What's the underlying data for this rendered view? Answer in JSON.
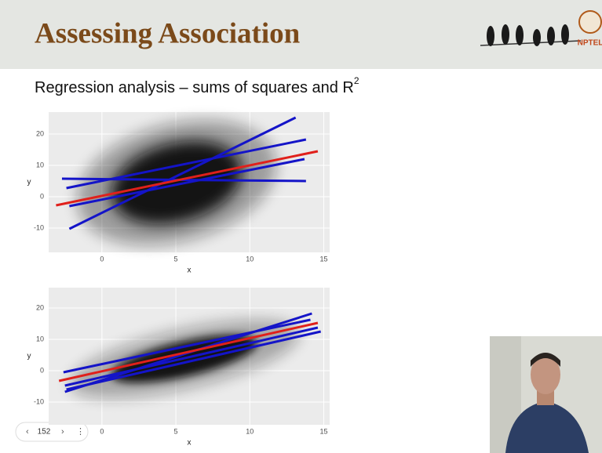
{
  "header": {
    "title": "Assessing Association",
    "logo_text": "NPTEL"
  },
  "subtitle": {
    "text": "Regression analysis – sums of squares and R",
    "superscript": "2"
  },
  "pager": {
    "page": "152"
  },
  "chart_data": [
    {
      "type": "line",
      "x_label": "x",
      "y_label": "y",
      "xlim": [
        -3.6,
        15.4
      ],
      "ylim": [
        -17.75,
        27
      ],
      "xticks": [
        0,
        5,
        10,
        15
      ],
      "yticks": [
        -10,
        0,
        10,
        20
      ],
      "grid": true,
      "series": [
        {
          "color": "#1414c8",
          "x": [
            -2.2,
            13.1
          ],
          "values": [
            -10.25,
            25.25
          ]
        },
        {
          "color": "#1414c8",
          "x": [
            -2.4,
            13.8
          ],
          "values": [
            2.75,
            18.25
          ]
        },
        {
          "color": "#1414c8",
          "x": [
            -2.7,
            13.8
          ],
          "values": [
            5.75,
            5
          ]
        },
        {
          "color": "#1414c8",
          "x": [
            -2.2,
            13.7
          ],
          "values": [
            -3,
            12
          ]
        },
        {
          "color": "#e0201b",
          "x": [
            -3.1,
            14.6
          ],
          "values": [
            -2.75,
            14.5
          ]
        }
      ]
    },
    {
      "type": "line",
      "x_label": "x",
      "y_label": "y",
      "xlim": [
        -3.6,
        15.4
      ],
      "ylim": [
        -17.25,
        26.5
      ],
      "xticks": [
        0,
        5,
        10,
        15
      ],
      "yticks": [
        -10,
        0,
        10,
        20
      ],
      "grid": true,
      "series": [
        {
          "color": "#1414c8",
          "x": [
            -2.5,
            14.2
          ],
          "values": [
            -6.75,
            18.25
          ]
        },
        {
          "color": "#1414c8",
          "x": [
            -2.5,
            14.6
          ],
          "values": [
            -4.75,
            13.75
          ]
        },
        {
          "color": "#1414c8",
          "x": [
            -2.6,
            14.1
          ],
          "values": [
            -0.5,
            16.25
          ]
        },
        {
          "color": "#1414c8",
          "x": [
            -2.4,
            14.8
          ],
          "values": [
            -6,
            12.5
          ]
        },
        {
          "color": "#e0201b",
          "x": [
            -2.9,
            14.6
          ],
          "values": [
            -3.25,
            15.25
          ]
        }
      ]
    }
  ]
}
